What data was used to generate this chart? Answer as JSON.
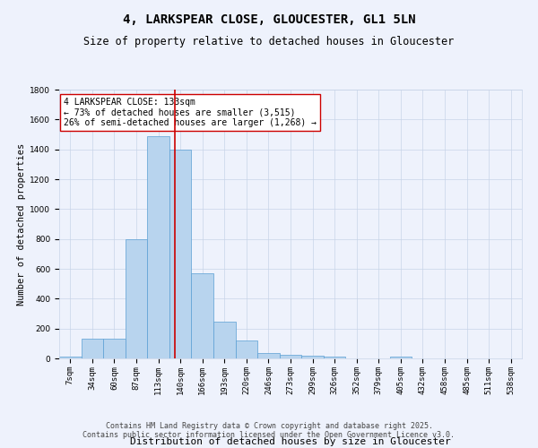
{
  "title": "4, LARKSPEAR CLOSE, GLOUCESTER, GL1 5LN",
  "subtitle": "Size of property relative to detached houses in Gloucester",
  "xlabel": "Distribution of detached houses by size in Gloucester",
  "ylabel": "Number of detached properties",
  "categories": [
    "7sqm",
    "34sqm",
    "60sqm",
    "87sqm",
    "113sqm",
    "140sqm",
    "166sqm",
    "193sqm",
    "220sqm",
    "246sqm",
    "273sqm",
    "299sqm",
    "326sqm",
    "352sqm",
    "379sqm",
    "405sqm",
    "432sqm",
    "458sqm",
    "485sqm",
    "511sqm",
    "538sqm"
  ],
  "values": [
    10,
    130,
    130,
    800,
    1490,
    1400,
    570,
    245,
    120,
    35,
    25,
    20,
    10,
    0,
    0,
    10,
    0,
    0,
    0,
    0,
    0
  ],
  "bar_color": "#b8d4ee",
  "bar_edge_color": "#5a9fd4",
  "vline_color": "#cc0000",
  "annotation_text": "4 LARKSPEAR CLOSE: 133sqm\n← 73% of detached houses are smaller (3,515)\n26% of semi-detached houses are larger (1,268) →",
  "annotation_box_color": "#ffffff",
  "annotation_box_edge": "#cc0000",
  "ylim": [
    0,
    1800
  ],
  "yticks": [
    0,
    200,
    400,
    600,
    800,
    1000,
    1200,
    1400,
    1600,
    1800
  ],
  "grid_color": "#c8d4e8",
  "bg_color": "#eef2fc",
  "footer_text": "Contains HM Land Registry data © Crown copyright and database right 2025.\nContains public sector information licensed under the Open Government Licence v3.0.",
  "title_fontsize": 10,
  "subtitle_fontsize": 8.5,
  "xlabel_fontsize": 8,
  "ylabel_fontsize": 7.5,
  "tick_fontsize": 6.5,
  "annotation_fontsize": 7,
  "footer_fontsize": 6
}
